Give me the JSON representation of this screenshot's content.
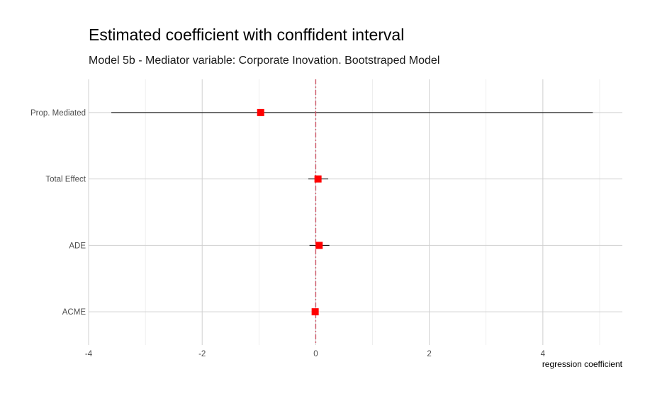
{
  "chart_data": {
    "type": "scatter",
    "title": "Estimated coefficient with conffident interval",
    "subtitle": "Model 5b - Mediator variable: Corporate Inovation. Bootstraped Model",
    "xlabel": "regression coefficient",
    "ylabel": "",
    "xlim": [
      -4,
      5.4
    ],
    "x_ticks": [
      -4,
      -2,
      0,
      2,
      4
    ],
    "x_tick_labels": [
      "-4",
      "-2",
      "0",
      "2",
      "4"
    ],
    "grid": true,
    "reference_line": {
      "x": 0,
      "style": "dashdot",
      "color": "#cc5566"
    },
    "point_color": "#ff0000",
    "categories": [
      "Prop. Mediated",
      "Total Effect",
      "ADE",
      "ACME"
    ],
    "series": [
      {
        "points": [
          {
            "label": "Prop. Mediated",
            "estimate": -0.97,
            "lower": -3.6,
            "upper": 4.88
          },
          {
            "label": "Total Effect",
            "estimate": 0.04,
            "lower": -0.13,
            "upper": 0.22
          },
          {
            "label": "ADE",
            "estimate": 0.06,
            "lower": -0.11,
            "upper": 0.24
          },
          {
            "label": "ACME",
            "estimate": -0.01,
            "lower": -0.02,
            "upper": 0.01
          }
        ]
      }
    ]
  }
}
